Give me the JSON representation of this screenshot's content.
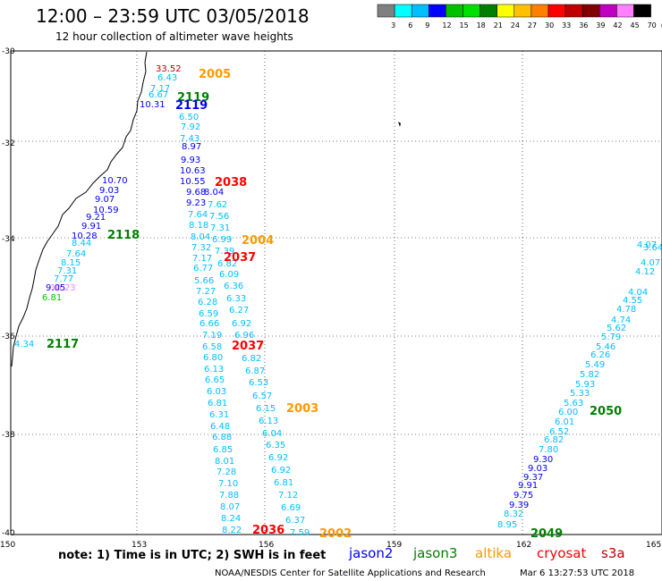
{
  "header": {
    "title": "12:00 – 23:59 UTC 03/05/2018",
    "subtitle": "12 hour collection of altimeter wave heights"
  },
  "scale": {
    "colors": [
      "#808080",
      "#00ffff",
      "#00bfff",
      "#0000ff",
      "#00c000",
      "#00e000",
      "#008000",
      "#ffff00",
      "#ffc000",
      "#ff8000",
      "#ff0000",
      "#c00000",
      "#800000",
      "#c000c0",
      "#ff80ff",
      "#000000"
    ],
    "labels": [
      "3",
      "6",
      "9",
      "12",
      "15",
      "18",
      "21",
      "24",
      "27",
      "30",
      "33",
      "36",
      "39",
      "42",
      "45",
      "70",
      "(ft)"
    ]
  },
  "map": {
    "lat_labels": [
      "-30",
      "-32",
      "-34",
      "-36",
      "-38",
      "-40"
    ],
    "lon_labels": [
      "150",
      "153",
      "156",
      "159",
      "162",
      "165"
    ],
    "passes": [
      {
        "id": "2005",
        "color": "#ff9900"
      },
      {
        "id": "2119",
        "color": "#008000"
      },
      {
        "id": "2119",
        "color": "#0000ff"
      },
      {
        "id": "2038",
        "color": "#ff0000"
      },
      {
        "id": "2118",
        "color": "#008000"
      },
      {
        "id": "2004",
        "color": "#ff9900"
      },
      {
        "id": "2037",
        "color": "#ff0000"
      },
      {
        "id": "2117",
        "color": "#008000"
      },
      {
        "id": "2037",
        "color": "#ff0000"
      },
      {
        "id": "2003",
        "color": "#ff9900"
      },
      {
        "id": "2050",
        "color": "#008000"
      },
      {
        "id": "2036",
        "color": "#ff0000"
      },
      {
        "id": "2002",
        "color": "#ff9900"
      },
      {
        "id": "2049",
        "color": "#008000"
      }
    ],
    "values": [
      {
        "t": "33.52",
        "c": "#c00000"
      },
      {
        "t": "6.43",
        "c": "#00bfff"
      },
      {
        "t": "7.17",
        "c": "#00bfff"
      },
      {
        "t": "6.67",
        "c": "#00bfff"
      },
      {
        "t": "10.31",
        "c": "#0000ff"
      },
      {
        "t": "6.50",
        "c": "#00bfff"
      },
      {
        "t": "7.92",
        "c": "#00bfff"
      },
      {
        "t": "7.43",
        "c": "#00bfff"
      },
      {
        "t": "8.97",
        "c": "#0000ff"
      },
      {
        "t": "9.93",
        "c": "#0000ff"
      },
      {
        "t": "10.63",
        "c": "#0000ff"
      },
      {
        "t": "10.55",
        "c": "#0000ff"
      },
      {
        "t": "9.68",
        "c": "#0000ff"
      },
      {
        "t": "8.04",
        "c": "#0000ff"
      },
      {
        "t": "9.23",
        "c": "#0000ff"
      },
      {
        "t": "7.62",
        "c": "#00bfff"
      },
      {
        "t": "7.64",
        "c": "#00bfff"
      },
      {
        "t": "7.56",
        "c": "#00bfff"
      },
      {
        "t": "8.18",
        "c": "#00bfff"
      },
      {
        "t": "7.31",
        "c": "#00bfff"
      },
      {
        "t": "8.04",
        "c": "#00bfff"
      },
      {
        "t": "6.99",
        "c": "#00bfff"
      },
      {
        "t": "7.32",
        "c": "#00bfff"
      },
      {
        "t": "7.39",
        "c": "#00bfff"
      },
      {
        "t": "7.17",
        "c": "#00bfff"
      },
      {
        "t": "6.82",
        "c": "#00bfff"
      },
      {
        "t": "6.77",
        "c": "#00bfff"
      },
      {
        "t": "6.09",
        "c": "#00bfff"
      },
      {
        "t": "5.66",
        "c": "#00bfff"
      },
      {
        "t": "6.36",
        "c": "#00bfff"
      },
      {
        "t": "7.27",
        "c": "#00bfff"
      },
      {
        "t": "6.33",
        "c": "#00bfff"
      },
      {
        "t": "6.28",
        "c": "#00bfff"
      },
      {
        "t": "6.27",
        "c": "#00bfff"
      },
      {
        "t": "6.59",
        "c": "#00bfff"
      },
      {
        "t": "6.92",
        "c": "#00bfff"
      },
      {
        "t": "6.66",
        "c": "#00bfff"
      },
      {
        "t": "6.96",
        "c": "#00bfff"
      },
      {
        "t": "7.19",
        "c": "#00bfff"
      },
      {
        "t": "6.58",
        "c": "#00bfff"
      },
      {
        "t": "6.82",
        "c": "#00bfff"
      },
      {
        "t": "6.80",
        "c": "#00bfff"
      },
      {
        "t": "6.87",
        "c": "#00bfff"
      },
      {
        "t": "6.13",
        "c": "#00bfff"
      },
      {
        "t": "6.53",
        "c": "#00bfff"
      },
      {
        "t": "6.65",
        "c": "#00bfff"
      },
      {
        "t": "6.57",
        "c": "#00bfff"
      },
      {
        "t": "6.03",
        "c": "#00bfff"
      },
      {
        "t": "6.15",
        "c": "#00bfff"
      },
      {
        "t": "6.81",
        "c": "#00bfff"
      },
      {
        "t": "6.13",
        "c": "#00bfff"
      },
      {
        "t": "6.31",
        "c": "#00bfff"
      },
      {
        "t": "6.04",
        "c": "#00bfff"
      },
      {
        "t": "6.48",
        "c": "#00bfff"
      },
      {
        "t": "6.88",
        "c": "#00bfff"
      },
      {
        "t": "6.35",
        "c": "#00bfff"
      },
      {
        "t": "6.85",
        "c": "#00bfff"
      },
      {
        "t": "6.92",
        "c": "#00bfff"
      },
      {
        "t": "8.01",
        "c": "#00bfff"
      },
      {
        "t": "6.92",
        "c": "#00bfff"
      },
      {
        "t": "7.28",
        "c": "#00bfff"
      },
      {
        "t": "6.81",
        "c": "#00bfff"
      },
      {
        "t": "7.10",
        "c": "#00bfff"
      },
      {
        "t": "7.12",
        "c": "#00bfff"
      },
      {
        "t": "7.88",
        "c": "#00bfff"
      },
      {
        "t": "6.69",
        "c": "#00bfff"
      },
      {
        "t": "8.07",
        "c": "#00bfff"
      },
      {
        "t": "6.37",
        "c": "#00bfff"
      },
      {
        "t": "8.24",
        "c": "#00bfff"
      },
      {
        "t": "7.59",
        "c": "#00bfff"
      },
      {
        "t": "8.22",
        "c": "#00bfff"
      },
      {
        "t": "10.70",
        "c": "#0000ff"
      },
      {
        "t": "9.03",
        "c": "#0000ff"
      },
      {
        "t": "9.07",
        "c": "#0000ff"
      },
      {
        "t": "10.59",
        "c": "#0000ff"
      },
      {
        "t": "9.21",
        "c": "#0000ff"
      },
      {
        "t": "9.91",
        "c": "#0000ff"
      },
      {
        "t": "10.28",
        "c": "#0000ff"
      },
      {
        "t": "8.44",
        "c": "#00bfff"
      },
      {
        "t": "7.64",
        "c": "#00bfff"
      },
      {
        "t": "8.15",
        "c": "#00bfff"
      },
      {
        "t": "7.31",
        "c": "#00bfff"
      },
      {
        "t": "7.77",
        "c": "#00bfff"
      },
      {
        "t": "10.23",
        "c": "#ff80ff"
      },
      {
        "t": "9.05",
        "c": "#0000ff"
      },
      {
        "t": "6.81",
        "c": "#00c000"
      },
      {
        "t": "4.34",
        "c": "#00bfff"
      },
      {
        "t": "4.07",
        "c": "#00bfff"
      },
      {
        "t": "3.64",
        "c": "#00bfff"
      },
      {
        "t": "4.07",
        "c": "#00bfff"
      },
      {
        "t": "4.12",
        "c": "#00bfff"
      },
      {
        "t": "4.04",
        "c": "#00bfff"
      },
      {
        "t": "4.55",
        "c": "#00bfff"
      },
      {
        "t": "4.78",
        "c": "#00bfff"
      },
      {
        "t": "4.74",
        "c": "#00bfff"
      },
      {
        "t": "5.62",
        "c": "#00bfff"
      },
      {
        "t": "5.79",
        "c": "#00bfff"
      },
      {
        "t": "5.46",
        "c": "#00bfff"
      },
      {
        "t": "6.26",
        "c": "#00bfff"
      },
      {
        "t": "5.49",
        "c": "#00bfff"
      },
      {
        "t": "5.82",
        "c": "#00bfff"
      },
      {
        "t": "5.93",
        "c": "#00bfff"
      },
      {
        "t": "5.33",
        "c": "#00bfff"
      },
      {
        "t": "5.63",
        "c": "#00bfff"
      },
      {
        "t": "6.00",
        "c": "#00bfff"
      },
      {
        "t": "6.01",
        "c": "#00bfff"
      },
      {
        "t": "6.52",
        "c": "#00bfff"
      },
      {
        "t": "6.82",
        "c": "#00bfff"
      },
      {
        "t": "7.80",
        "c": "#00bfff"
      },
      {
        "t": "9.30",
        "c": "#0000ff"
      },
      {
        "t": "9.03",
        "c": "#0000ff"
      },
      {
        "t": "9.37",
        "c": "#0000ff"
      },
      {
        "t": "9.91",
        "c": "#0000ff"
      },
      {
        "t": "9.75",
        "c": "#0000ff"
      },
      {
        "t": "9.39",
        "c": "#0000ff"
      },
      {
        "t": "8.32",
        "c": "#00bfff"
      },
      {
        "t": "8.95",
        "c": "#00bfff"
      }
    ]
  },
  "legend": {
    "note": "note:  1) Time is in UTC;  2) SWH is in feet",
    "satellites": [
      {
        "name": "jason2",
        "color": "#0000ff"
      },
      {
        "name": "jason3",
        "color": "#008000"
      },
      {
        "name": "altika",
        "color": "#ff9900"
      },
      {
        "name": "cryosat",
        "color": "#ff0000"
      },
      {
        "name": "s3a",
        "color": "#c00000"
      }
    ]
  },
  "footer": {
    "credit": "NOAA/NESDIS Center for Satellite Applications and Research",
    "timestamp": "Mar  6 13:27:53 UTC 2018"
  }
}
